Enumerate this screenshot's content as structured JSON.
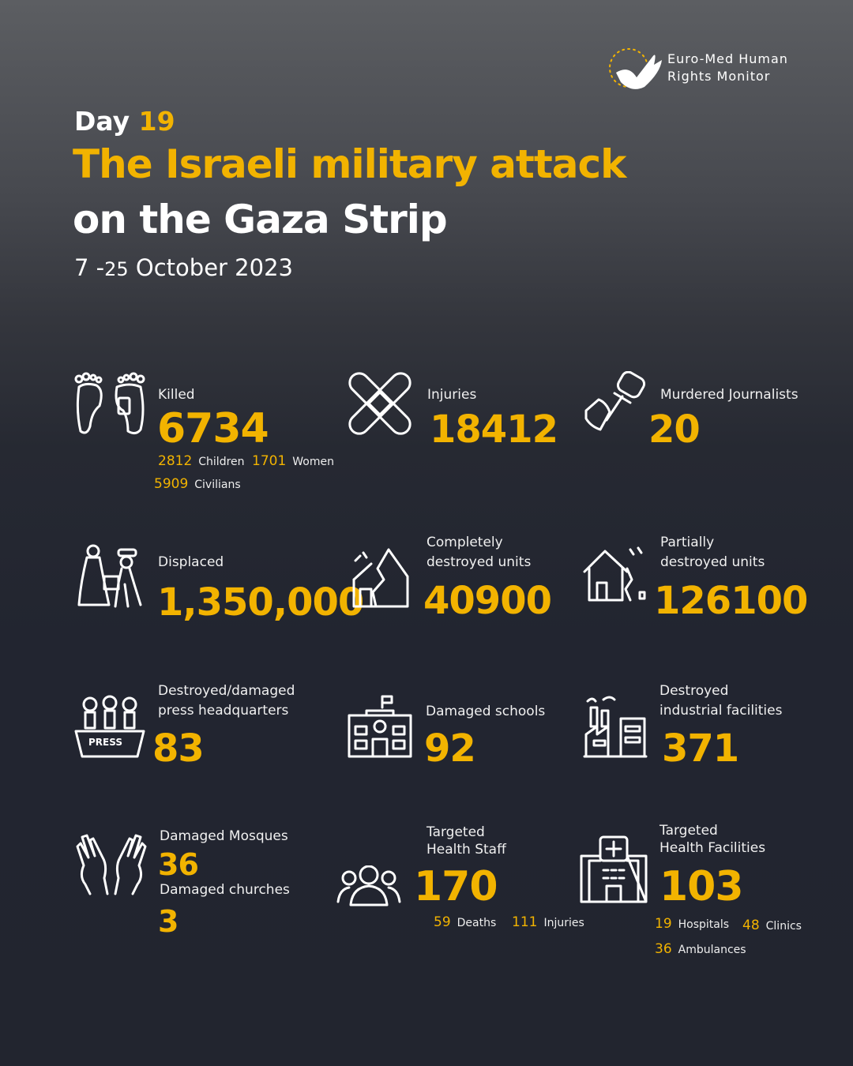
{
  "org": {
    "line1": "Euro-Med Human",
    "line2": "Rights Monitor"
  },
  "header": {
    "day_label": "Day",
    "day_num": "19",
    "title_line1": "The Israeli military attack",
    "title_line2": "on the Gaza Strip",
    "date_start": "7 -",
    "date_day": "25",
    "date_rest": "October 2023"
  },
  "killed": {
    "label": "Killed",
    "value": "6734",
    "children_num": "2812",
    "children_label": "Children",
    "women_num": "1701",
    "women_label": "Women",
    "civilians_num": "5909",
    "civilians_label": "Civilians"
  },
  "injuries": {
    "label": "Injuries",
    "value": "18412"
  },
  "journalists": {
    "label": "Murdered Journalists",
    "value": "20"
  },
  "displaced": {
    "label": "Displaced",
    "value": "1,350,000"
  },
  "complete": {
    "label1": "Completely",
    "label2": "destroyed units",
    "value": "40900"
  },
  "partial": {
    "label1": "Partially",
    "label2": "destroyed units",
    "value": "126100"
  },
  "press": {
    "label1": "Destroyed/damaged",
    "label2": "press headquarters",
    "value": "83",
    "sign": "PRESS"
  },
  "schools": {
    "label": "Damaged schools",
    "value": "92"
  },
  "industrial": {
    "label1": "Destroyed",
    "label2": "industrial facilities",
    "value": "371"
  },
  "worship": {
    "mosques_label": "Damaged Mosques",
    "mosques_value": "36",
    "churches_label": "Damaged churches",
    "churches_value": "3"
  },
  "staff": {
    "label1": "Targeted",
    "label2": "Health Staff",
    "value": "170",
    "deaths_num": "59",
    "deaths_label": "Deaths",
    "injuries_num": "111",
    "injuries_label": "Injuries"
  },
  "facilities": {
    "label1": "Targeted",
    "label2": "Health Facilities",
    "value": "103",
    "hospitals_num": "19",
    "hospitals_label": "Hospitals",
    "clinics_num": "48",
    "clinics_label": "Clinics",
    "ambulances_num": "36",
    "ambulances_label": "Ambulances"
  },
  "colors": {
    "accent": "#f2b300",
    "background": "#22252f"
  }
}
